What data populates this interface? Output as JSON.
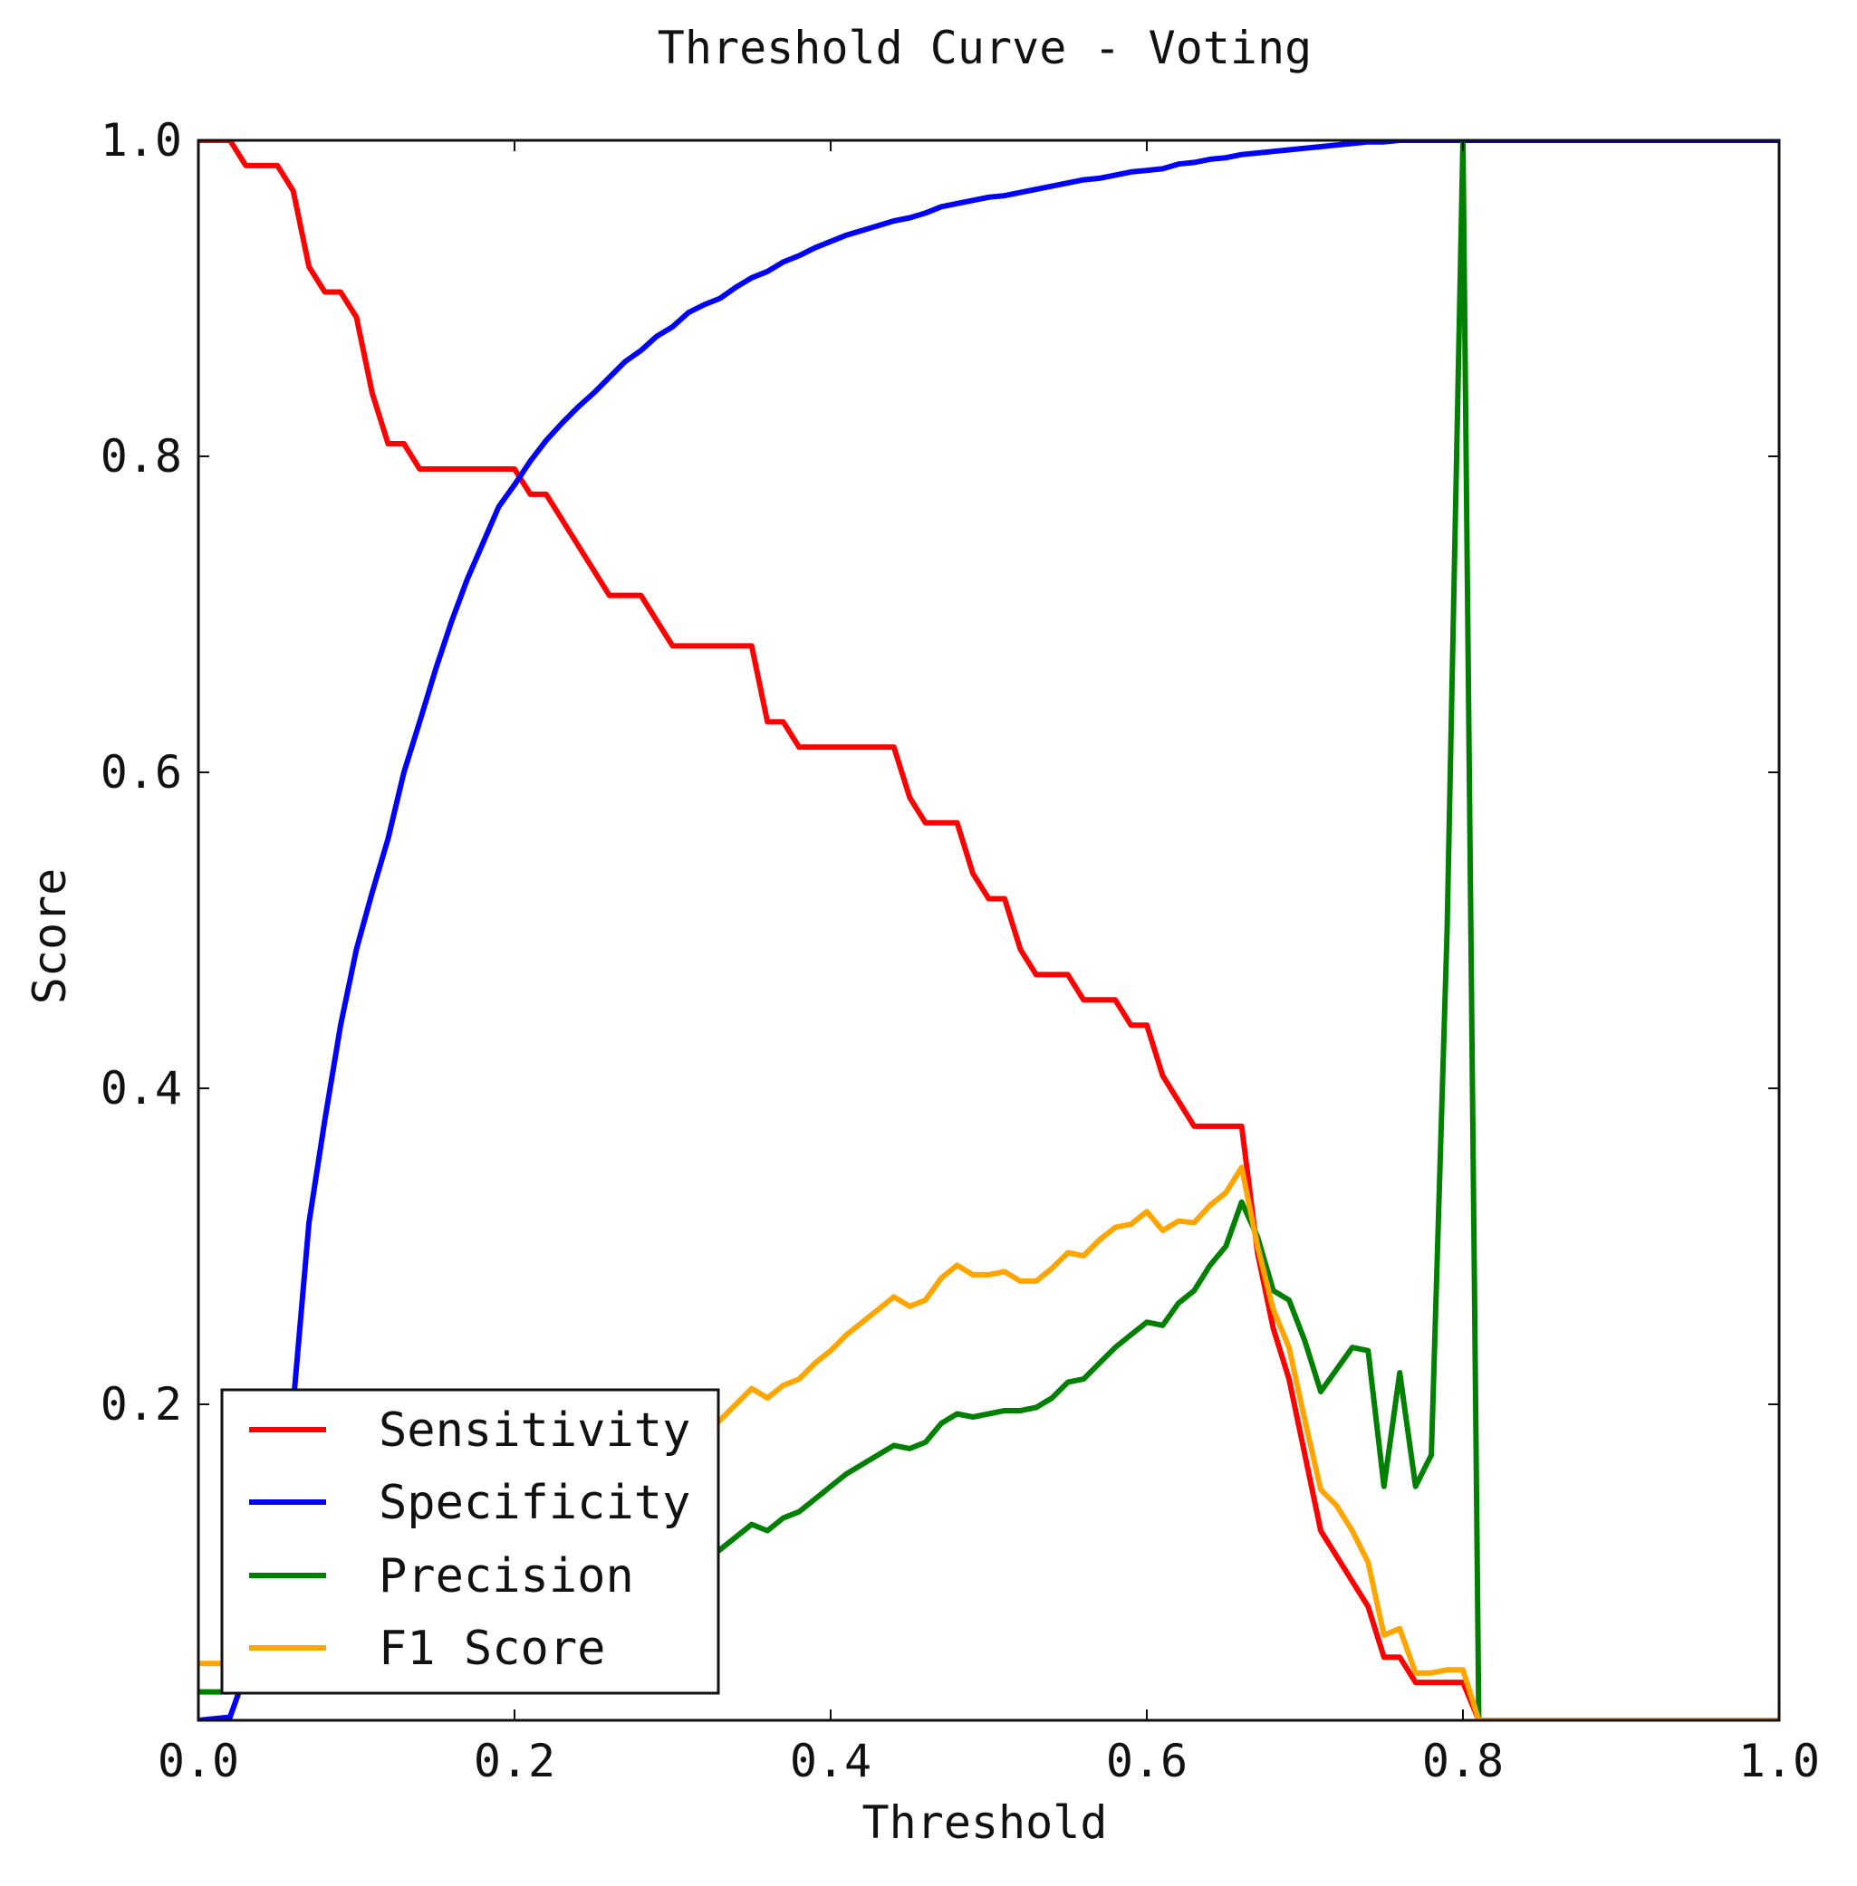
{
  "chart_data": {
    "type": "line",
    "title": "Threshold Curve - Voting",
    "xlabel": "Threshold",
    "ylabel": "Score",
    "xlim": [
      0,
      1
    ],
    "ylim": [
      0,
      1
    ],
    "xticks": [
      "0.0",
      "0.2",
      "0.4",
      "0.6",
      "0.8",
      "1.0"
    ],
    "yticks": [
      "0.2",
      "0.4",
      "0.6",
      "0.8",
      "1.0"
    ],
    "grid": false,
    "legend_position": "lower-left",
    "series": [
      {
        "name": "Sensitivity",
        "color": "#ff0000",
        "points": [
          [
            0.0,
            1.0
          ],
          [
            0.02,
            1.0
          ],
          [
            0.03,
            0.984
          ],
          [
            0.05,
            0.984
          ],
          [
            0.06,
            0.968
          ],
          [
            0.07,
            0.92
          ],
          [
            0.08,
            0.904
          ],
          [
            0.09,
            0.904
          ],
          [
            0.1,
            0.888
          ],
          [
            0.11,
            0.84
          ],
          [
            0.12,
            0.808
          ],
          [
            0.13,
            0.808
          ],
          [
            0.14,
            0.792
          ],
          [
            0.2,
            0.792
          ],
          [
            0.21,
            0.776
          ],
          [
            0.22,
            0.776
          ],
          [
            0.23,
            0.76
          ],
          [
            0.24,
            0.744
          ],
          [
            0.25,
            0.728
          ],
          [
            0.26,
            0.712
          ],
          [
            0.28,
            0.712
          ],
          [
            0.29,
            0.696
          ],
          [
            0.3,
            0.68
          ],
          [
            0.35,
            0.68
          ],
          [
            0.36,
            0.632
          ],
          [
            0.37,
            0.632
          ],
          [
            0.38,
            0.616
          ],
          [
            0.44,
            0.616
          ],
          [
            0.45,
            0.584
          ],
          [
            0.46,
            0.568
          ],
          [
            0.48,
            0.568
          ],
          [
            0.49,
            0.536
          ],
          [
            0.5,
            0.52
          ],
          [
            0.51,
            0.52
          ],
          [
            0.52,
            0.488
          ],
          [
            0.53,
            0.472
          ],
          [
            0.55,
            0.472
          ],
          [
            0.56,
            0.456
          ],
          [
            0.58,
            0.456
          ],
          [
            0.59,
            0.44
          ],
          [
            0.6,
            0.44
          ],
          [
            0.61,
            0.408
          ],
          [
            0.62,
            0.392
          ],
          [
            0.63,
            0.376
          ],
          [
            0.66,
            0.376
          ],
          [
            0.67,
            0.296
          ],
          [
            0.68,
            0.248
          ],
          [
            0.69,
            0.216
          ],
          [
            0.7,
            0.168
          ],
          [
            0.71,
            0.12
          ],
          [
            0.72,
            0.104
          ],
          [
            0.73,
            0.088
          ],
          [
            0.74,
            0.072
          ],
          [
            0.75,
            0.04
          ],
          [
            0.76,
            0.04
          ],
          [
            0.77,
            0.024
          ],
          [
            0.8,
            0.024
          ],
          [
            0.81,
            0.0
          ],
          [
            1.0,
            0.0
          ]
        ]
      },
      {
        "name": "Specificity",
        "color": "#0000ff",
        "points": [
          [
            0.0,
            0.0
          ],
          [
            0.02,
            0.002
          ],
          [
            0.03,
            0.03
          ],
          [
            0.05,
            0.1
          ],
          [
            0.06,
            0.2
          ],
          [
            0.07,
            0.315
          ],
          [
            0.08,
            0.38
          ],
          [
            0.09,
            0.44
          ],
          [
            0.1,
            0.488
          ],
          [
            0.11,
            0.524
          ],
          [
            0.12,
            0.558
          ],
          [
            0.13,
            0.6
          ],
          [
            0.14,
            0.632
          ],
          [
            0.15,
            0.665
          ],
          [
            0.16,
            0.695
          ],
          [
            0.17,
            0.722
          ],
          [
            0.18,
            0.745
          ],
          [
            0.19,
            0.768
          ],
          [
            0.2,
            0.782
          ],
          [
            0.21,
            0.797
          ],
          [
            0.22,
            0.81
          ],
          [
            0.23,
            0.821
          ],
          [
            0.24,
            0.831
          ],
          [
            0.25,
            0.84
          ],
          [
            0.26,
            0.85
          ],
          [
            0.27,
            0.86
          ],
          [
            0.28,
            0.867
          ],
          [
            0.29,
            0.876
          ],
          [
            0.3,
            0.882
          ],
          [
            0.31,
            0.891
          ],
          [
            0.32,
            0.896
          ],
          [
            0.33,
            0.9
          ],
          [
            0.34,
            0.907
          ],
          [
            0.35,
            0.913
          ],
          [
            0.36,
            0.917
          ],
          [
            0.37,
            0.923
          ],
          [
            0.38,
            0.927
          ],
          [
            0.39,
            0.932
          ],
          [
            0.4,
            0.936
          ],
          [
            0.41,
            0.94
          ],
          [
            0.42,
            0.943
          ],
          [
            0.43,
            0.946
          ],
          [
            0.44,
            0.949
          ],
          [
            0.45,
            0.951
          ],
          [
            0.46,
            0.954
          ],
          [
            0.47,
            0.958
          ],
          [
            0.48,
            0.96
          ],
          [
            0.49,
            0.962
          ],
          [
            0.5,
            0.964
          ],
          [
            0.51,
            0.965
          ],
          [
            0.52,
            0.967
          ],
          [
            0.53,
            0.969
          ],
          [
            0.54,
            0.971
          ],
          [
            0.55,
            0.973
          ],
          [
            0.56,
            0.975
          ],
          [
            0.57,
            0.976
          ],
          [
            0.58,
            0.978
          ],
          [
            0.59,
            0.98
          ],
          [
            0.6,
            0.981
          ],
          [
            0.61,
            0.982
          ],
          [
            0.62,
            0.985
          ],
          [
            0.63,
            0.986
          ],
          [
            0.64,
            0.988
          ],
          [
            0.65,
            0.989
          ],
          [
            0.66,
            0.991
          ],
          [
            0.67,
            0.992
          ],
          [
            0.68,
            0.993
          ],
          [
            0.69,
            0.994
          ],
          [
            0.7,
            0.995
          ],
          [
            0.71,
            0.996
          ],
          [
            0.72,
            0.997
          ],
          [
            0.73,
            0.998
          ],
          [
            0.74,
            0.999
          ],
          [
            0.75,
            0.999
          ],
          [
            0.76,
            1.0
          ],
          [
            1.0,
            1.0
          ]
        ]
      },
      {
        "name": "Precision",
        "color": "#008000",
        "points": [
          [
            0.0,
            0.018
          ],
          [
            0.02,
            0.018
          ],
          [
            0.03,
            0.02
          ],
          [
            0.32,
            0.1
          ],
          [
            0.33,
            0.108
          ],
          [
            0.34,
            0.116
          ],
          [
            0.35,
            0.124
          ],
          [
            0.36,
            0.12
          ],
          [
            0.37,
            0.128
          ],
          [
            0.38,
            0.132
          ],
          [
            0.39,
            0.14
          ],
          [
            0.4,
            0.148
          ],
          [
            0.41,
            0.156
          ],
          [
            0.42,
            0.162
          ],
          [
            0.43,
            0.168
          ],
          [
            0.44,
            0.174
          ],
          [
            0.45,
            0.172
          ],
          [
            0.46,
            0.176
          ],
          [
            0.47,
            0.188
          ],
          [
            0.48,
            0.194
          ],
          [
            0.49,
            0.192
          ],
          [
            0.5,
            0.194
          ],
          [
            0.51,
            0.196
          ],
          [
            0.52,
            0.196
          ],
          [
            0.53,
            0.198
          ],
          [
            0.54,
            0.204
          ],
          [
            0.55,
            0.214
          ],
          [
            0.56,
            0.216
          ],
          [
            0.57,
            0.226
          ],
          [
            0.58,
            0.236
          ],
          [
            0.59,
            0.244
          ],
          [
            0.6,
            0.252
          ],
          [
            0.61,
            0.25
          ],
          [
            0.62,
            0.264
          ],
          [
            0.63,
            0.272
          ],
          [
            0.64,
            0.288
          ],
          [
            0.65,
            0.3
          ],
          [
            0.66,
            0.328
          ],
          [
            0.67,
            0.306
          ],
          [
            0.68,
            0.272
          ],
          [
            0.69,
            0.266
          ],
          [
            0.7,
            0.24
          ],
          [
            0.71,
            0.208
          ],
          [
            0.72,
            0.222
          ],
          [
            0.73,
            0.236
          ],
          [
            0.74,
            0.234
          ],
          [
            0.75,
            0.148
          ],
          [
            0.76,
            0.22
          ],
          [
            0.77,
            0.148
          ],
          [
            0.78,
            0.168
          ],
          [
            0.79,
            0.5
          ],
          [
            0.8,
            1.0
          ],
          [
            0.81,
            0.0
          ],
          [
            1.0,
            0.0
          ]
        ]
      },
      {
        "name": "F1 Score",
        "color": "#ffa500",
        "points": [
          [
            0.0,
            0.036
          ],
          [
            0.02,
            0.036
          ],
          [
            0.03,
            0.04
          ],
          [
            0.32,
            0.18
          ],
          [
            0.33,
            0.19
          ],
          [
            0.34,
            0.2
          ],
          [
            0.35,
            0.21
          ],
          [
            0.36,
            0.204
          ],
          [
            0.37,
            0.212
          ],
          [
            0.38,
            0.216
          ],
          [
            0.39,
            0.226
          ],
          [
            0.4,
            0.234
          ],
          [
            0.41,
            0.244
          ],
          [
            0.42,
            0.252
          ],
          [
            0.43,
            0.26
          ],
          [
            0.44,
            0.268
          ],
          [
            0.45,
            0.262
          ],
          [
            0.46,
            0.266
          ],
          [
            0.47,
            0.28
          ],
          [
            0.48,
            0.288
          ],
          [
            0.49,
            0.282
          ],
          [
            0.5,
            0.282
          ],
          [
            0.51,
            0.284
          ],
          [
            0.52,
            0.278
          ],
          [
            0.53,
            0.278
          ],
          [
            0.54,
            0.286
          ],
          [
            0.55,
            0.296
          ],
          [
            0.56,
            0.294
          ],
          [
            0.57,
            0.304
          ],
          [
            0.58,
            0.312
          ],
          [
            0.59,
            0.314
          ],
          [
            0.6,
            0.322
          ],
          [
            0.61,
            0.31
          ],
          [
            0.62,
            0.316
          ],
          [
            0.63,
            0.315
          ],
          [
            0.64,
            0.326
          ],
          [
            0.65,
            0.334
          ],
          [
            0.66,
            0.35
          ],
          [
            0.67,
            0.3
          ],
          [
            0.68,
            0.26
          ],
          [
            0.69,
            0.236
          ],
          [
            0.7,
            0.19
          ],
          [
            0.71,
            0.146
          ],
          [
            0.72,
            0.136
          ],
          [
            0.73,
            0.12
          ],
          [
            0.74,
            0.1
          ],
          [
            0.75,
            0.054
          ],
          [
            0.76,
            0.058
          ],
          [
            0.77,
            0.03
          ],
          [
            0.78,
            0.03
          ],
          [
            0.79,
            0.032
          ],
          [
            0.8,
            0.032
          ],
          [
            0.81,
            0.0
          ],
          [
            1.0,
            0.0
          ]
        ]
      }
    ]
  }
}
